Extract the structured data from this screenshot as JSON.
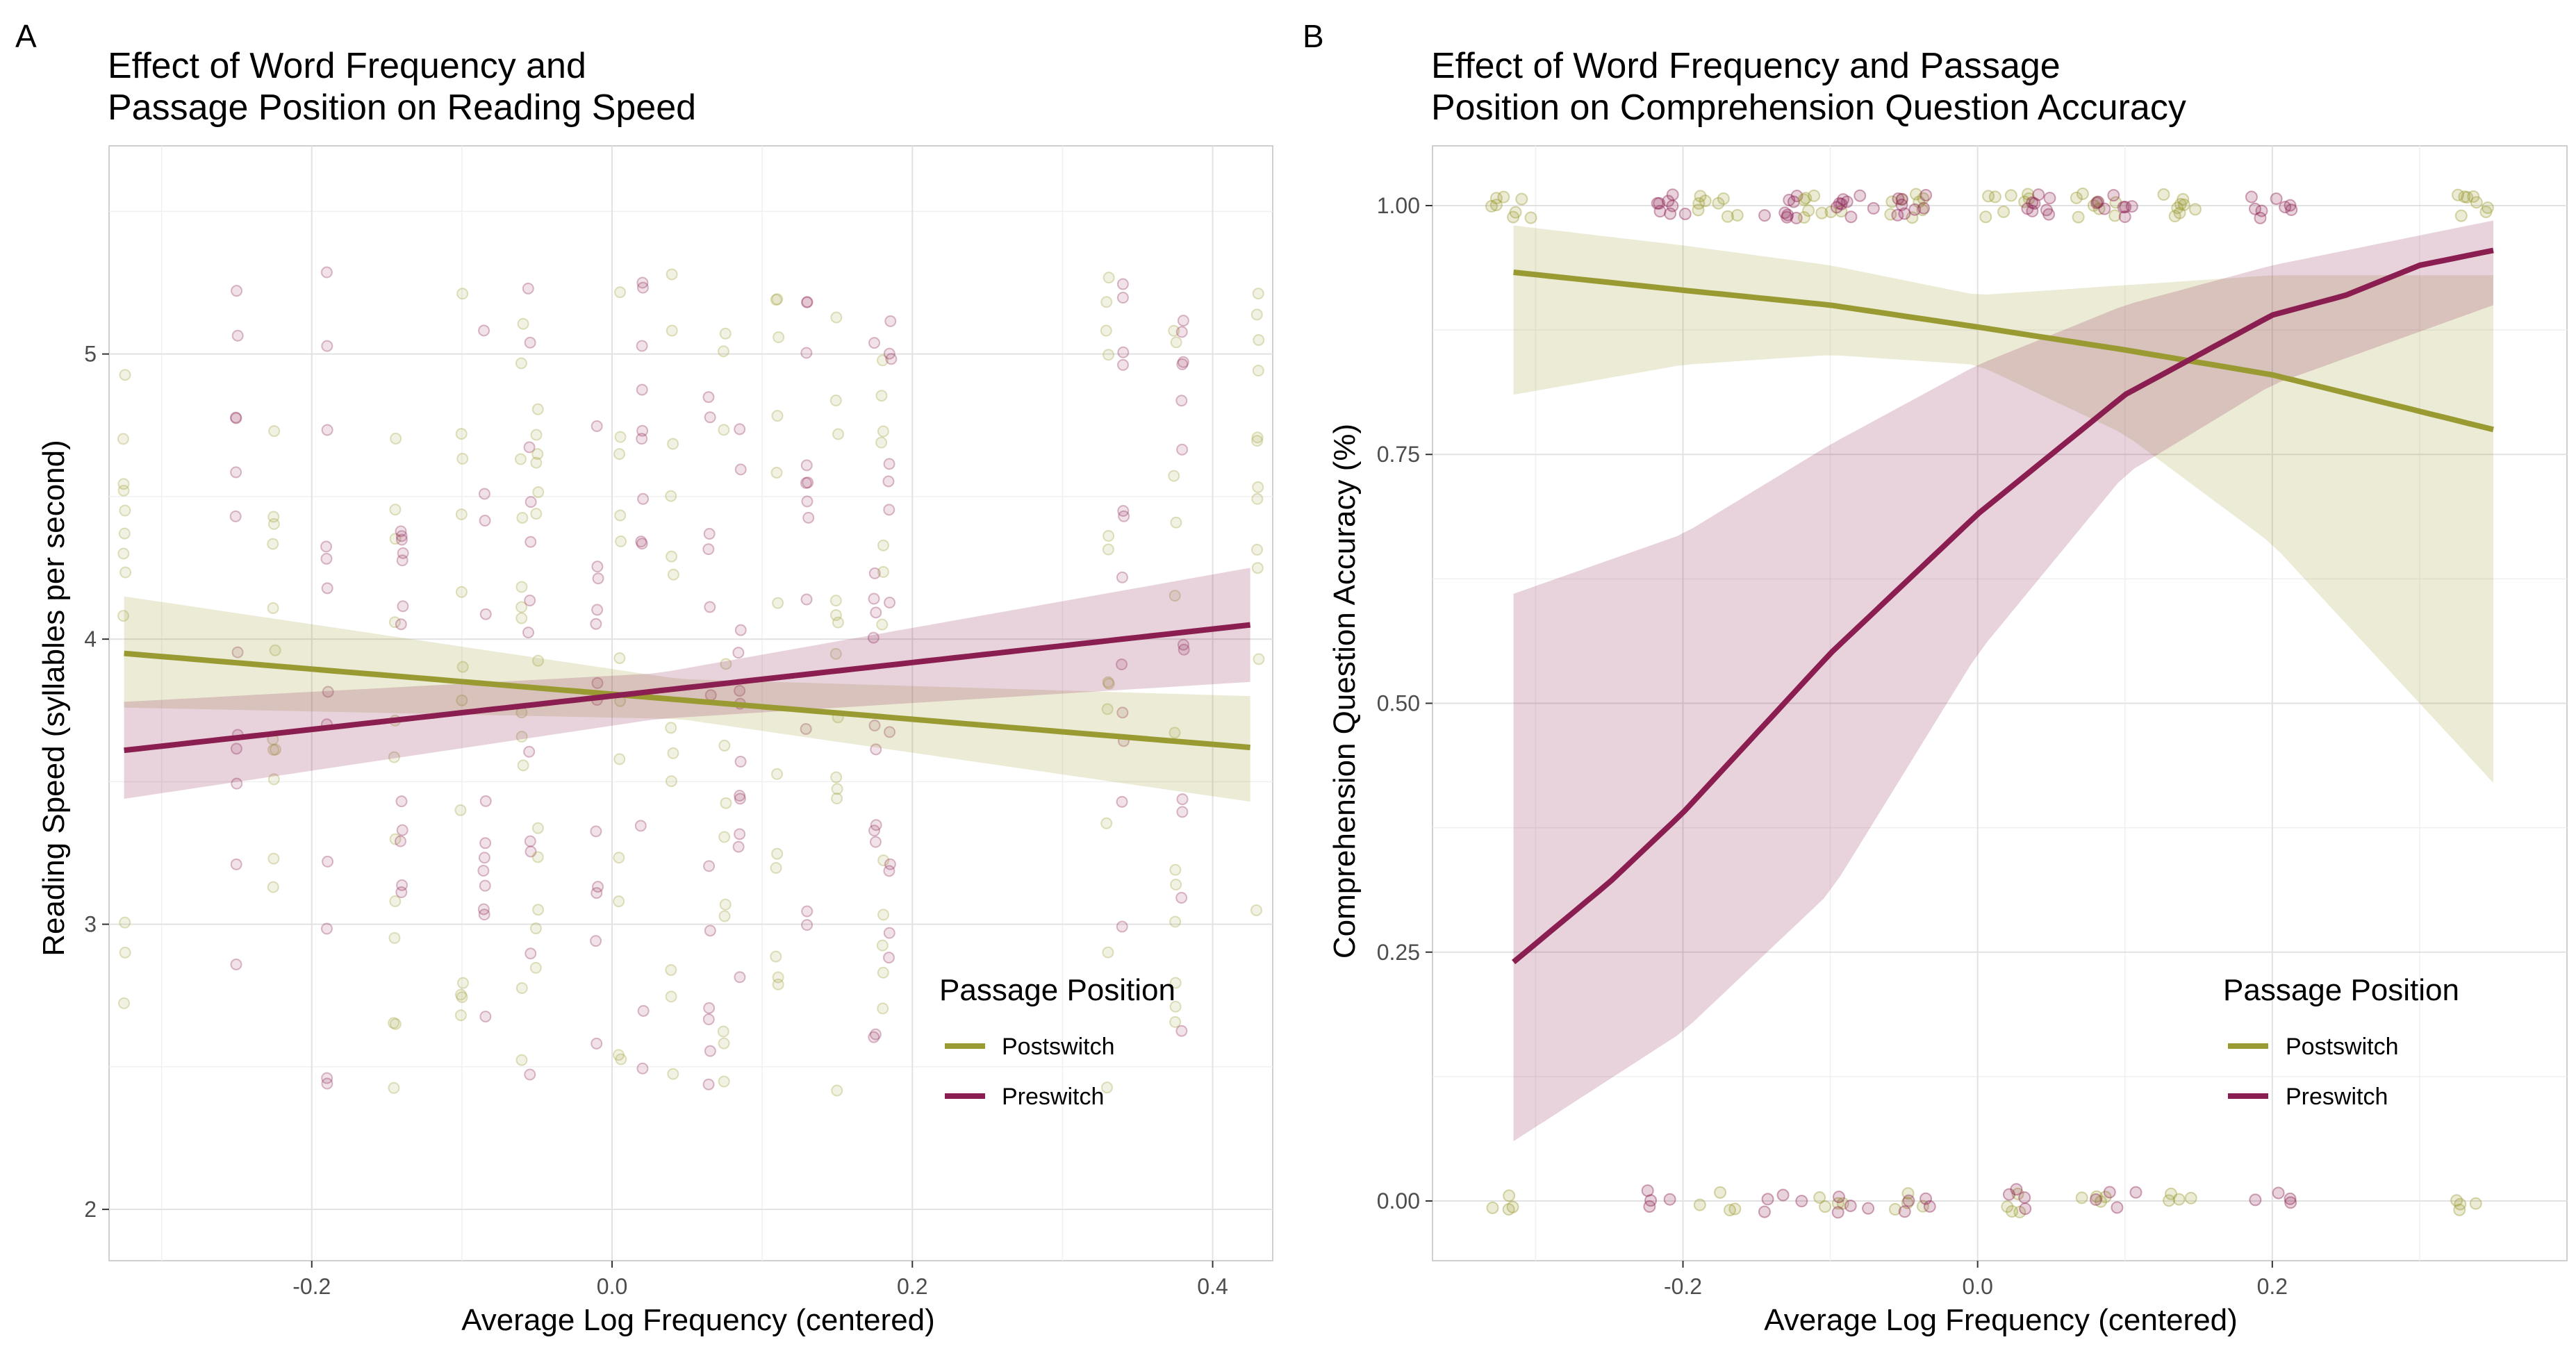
{
  "colors": {
    "postswitch": "#9a9a32",
    "preswitch": "#8b1e50"
  },
  "chart_data": [
    {
      "panel": "A",
      "type": "scatter",
      "title_lines": [
        "Effect of Word Frequency and",
        "Passage Position on Reading Speed"
      ],
      "xlabel": "Average Log Frequency (centered)",
      "ylabel": "Reading Speed (syllables per second)",
      "xlim": [
        -0.335,
        0.44
      ],
      "ylim": [
        1.82,
        5.73
      ],
      "x_ticks": [
        -0.2,
        0.0,
        0.2,
        0.4
      ],
      "x_tick_labels": [
        "-0.2",
        "0.0",
        "0.2",
        "0.4"
      ],
      "y_ticks": [
        2,
        3,
        4,
        5
      ],
      "y_tick_labels": [
        "2",
        "3",
        "4",
        "5"
      ],
      "grid": true,
      "legend": {
        "title": "Passage Position",
        "placement": "bottom-right",
        "entries": [
          "Postswitch",
          "Preswitch"
        ]
      },
      "point_x_values": [
        -0.325,
        -0.25,
        -0.225,
        -0.19,
        -0.145,
        -0.14,
        -0.1,
        -0.085,
        -0.06,
        -0.055,
        -0.05,
        -0.01,
        0.005,
        0.02,
        0.04,
        0.065,
        0.075,
        0.085,
        0.11,
        0.13,
        0.15,
        0.175,
        0.18,
        0.185,
        0.33,
        0.34,
        0.375,
        0.38,
        0.43
      ],
      "series": [
        {
          "name": "Postswitch",
          "fit_line": {
            "x": [
              -0.325,
              0.425
            ],
            "y": [
              3.95,
              3.62
            ]
          },
          "ribbon": {
            "x": [
              -0.325,
              0.045,
              0.425
            ],
            "lower": [
              3.76,
              3.72,
              3.43
            ],
            "upper": [
              4.15,
              3.86,
              3.8
            ]
          }
        },
        {
          "name": "Preswitch",
          "fit_line": {
            "x": [
              -0.325,
              0.425
            ],
            "y": [
              3.61,
              4.05
            ]
          },
          "ribbon": {
            "x": [
              -0.325,
              0.03,
              0.425
            ],
            "lower": [
              3.44,
              3.72,
              3.85
            ],
            "upper": [
              3.78,
              3.88,
              4.25
            ]
          }
        }
      ]
    },
    {
      "panel": "B",
      "type": "scatter",
      "title_lines": [
        "Effect of Word Frequency and Passage",
        "Position on Comprehension Question Accuracy"
      ],
      "xlabel": "Average Log Frequency (centered)",
      "ylabel": "Comprehension Question Accuracy (%)",
      "xlim": [
        -0.37,
        0.4
      ],
      "ylim": [
        -0.06,
        1.06
      ],
      "x_ticks": [
        -0.2,
        0.0,
        0.2
      ],
      "x_tick_labels": [
        "-0.2",
        "0.0",
        "0.2"
      ],
      "y_ticks": [
        0,
        0.25,
        0.5,
        0.75,
        1.0
      ],
      "y_tick_labels": [
        "0.00",
        "0.25",
        "0.50",
        "0.75",
        "1.00"
      ],
      "grid": true,
      "legend": {
        "title": "Passage Position",
        "placement": "bottom-right",
        "entries": [
          "Postswitch",
          "Preswitch"
        ]
      },
      "point_x_values": [
        -0.315,
        -0.21,
        -0.175,
        -0.13,
        -0.105,
        -0.085,
        -0.05,
        -0.04,
        0.02,
        0.035,
        0.08,
        0.095,
        0.135,
        0.2,
        0.34
      ],
      "series": [
        {
          "name": "Postswitch",
          "fit_line": {
            "x": [
              -0.315,
              -0.2,
              -0.1,
              0.0,
              0.1,
              0.2,
              0.35
            ],
            "y": [
              0.933,
              0.915,
              0.9,
              0.878,
              0.855,
              0.83,
              0.775
            ]
          },
          "ribbon": {
            "x": [
              -0.315,
              -0.2,
              -0.1,
              0.0,
              0.1,
              0.2,
              0.35
            ],
            "lower": [
              0.81,
              0.84,
              0.85,
              0.84,
              0.77,
              0.66,
              0.42
            ],
            "upper": [
              0.98,
              0.96,
              0.94,
              0.91,
              0.92,
              0.93,
              0.93
            ]
          }
        },
        {
          "name": "Preswitch",
          "fit_line": {
            "x": [
              -0.315,
              -0.25,
              -0.2,
              -0.15,
              -0.1,
              -0.05,
              0.0,
              0.05,
              0.1,
              0.15,
              0.2,
              0.25,
              0.3,
              0.35
            ],
            "y": [
              0.24,
              0.32,
              0.39,
              0.47,
              0.55,
              0.62,
              0.69,
              0.75,
              0.81,
              0.85,
              0.89,
              0.91,
              0.94,
              0.955
            ]
          },
          "ribbon": {
            "x": [
              -0.315,
              -0.2,
              -0.1,
              0.0,
              0.1,
              0.2,
              0.35
            ],
            "lower": [
              0.06,
              0.17,
              0.31,
              0.55,
              0.73,
              0.82,
              0.9
            ],
            "upper": [
              0.61,
              0.67,
              0.76,
              0.84,
              0.9,
              0.94,
              0.985
            ]
          }
        }
      ]
    }
  ]
}
